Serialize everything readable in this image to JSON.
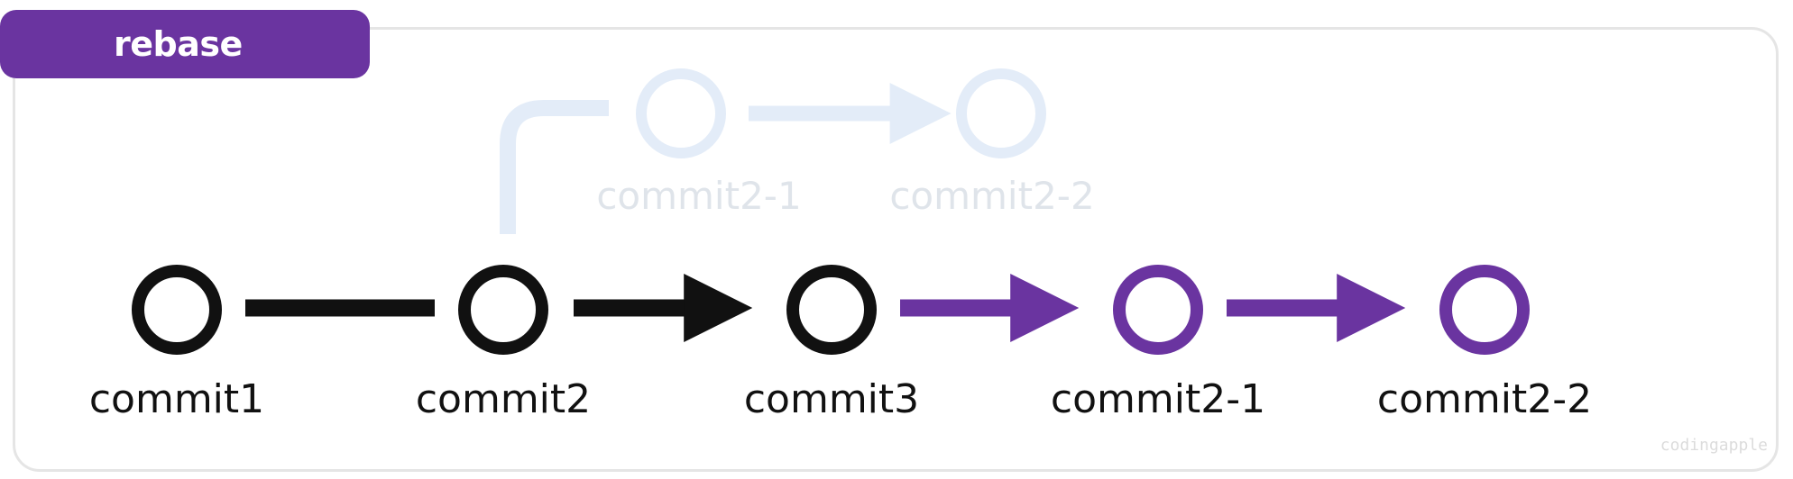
{
  "tag": {
    "label": "rebase"
  },
  "watermark": "codingapple",
  "colors": {
    "main": "#111111",
    "rebased": "#6a34a0",
    "ghost": "#e3ecf8",
    "ghost_text": "#dfe4ea",
    "frame": "#e5e5e5"
  },
  "main_line": [
    {
      "id": "c1",
      "label": "commit1",
      "style": "main"
    },
    {
      "id": "c2",
      "label": "commit2",
      "style": "main"
    },
    {
      "id": "c3",
      "label": "commit3",
      "style": "main"
    },
    {
      "id": "c21n",
      "label": "commit2-1",
      "style": "rebased"
    },
    {
      "id": "c22n",
      "label": "commit2-2",
      "style": "rebased"
    }
  ],
  "ghost_branch": [
    {
      "id": "g21",
      "label": "commit2-1",
      "style": "ghost"
    },
    {
      "id": "g22",
      "label": "commit2-2",
      "style": "ghost"
    }
  ]
}
